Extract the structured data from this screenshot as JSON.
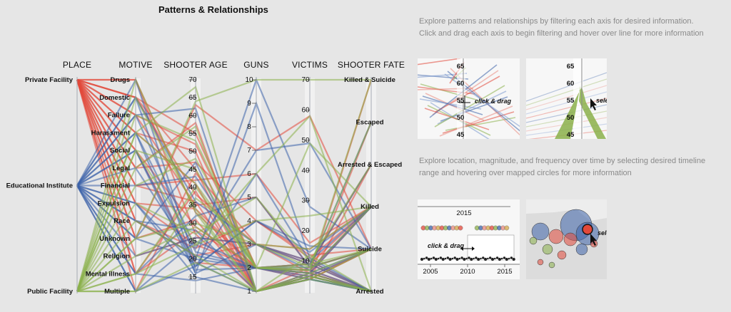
{
  "title": "Patterns & Relationships",
  "instructions": {
    "parallel_line1": "Explore patterns and relationships by filtering each axis for desired information.",
    "parallel_line2": "Click and drag each axis to begin filtering and hover over line for more information",
    "map_line1": "Explore location, magnitude, and frequency over time by selecting desired timeline",
    "map_line2": "range and hovering over mapped circles for more information"
  },
  "demo_panels": {
    "drag_ticks": [
      "65",
      "60",
      "55",
      "50",
      "45"
    ],
    "drag_hint": "click & drag",
    "select_ticks": [
      "65",
      "60",
      "55",
      "50",
      "45"
    ],
    "select_hint": "select",
    "timeline_year_top": "2015",
    "timeline_hint": "click & drag",
    "timeline_years": [
      "2005",
      "2010",
      "2015"
    ],
    "map_hint": "select"
  },
  "chart_data": {
    "type": "parallel-coordinates",
    "axes": [
      {
        "name": "PLACE",
        "kind": "categorical",
        "categories": [
          "Private Facility",
          "Educational Institute",
          "Public Facility"
        ]
      },
      {
        "name": "MOTIVE",
        "kind": "categorical",
        "categories": [
          "Drugs",
          "Domestic",
          "Failure",
          "Harassment",
          "Social",
          "Legal",
          "Financial",
          "Expulsion",
          "Race",
          "Unknown",
          "Religion",
          "Mental illness",
          "Multiple"
        ]
      },
      {
        "name": "SHOOTER AGE",
        "kind": "numeric",
        "ticks": [
          "70",
          "65",
          "60",
          "55",
          "50",
          "45",
          "40",
          "35",
          "30",
          "25",
          "20",
          "15"
        ],
        "range": [
          11,
          70
        ]
      },
      {
        "name": "GUNS",
        "kind": "numeric",
        "ticks": [
          "10",
          "9",
          "8",
          "7",
          "6",
          "5",
          "4",
          "3",
          "2",
          "1"
        ],
        "range": [
          1,
          10
        ]
      },
      {
        "name": "VICTIMS",
        "kind": "numeric",
        "ticks": [
          "70",
          "60",
          "50",
          "40",
          "30",
          "20",
          "10"
        ],
        "range": [
          0,
          70
        ]
      },
      {
        "name": "SHOOTER FATE",
        "kind": "categorical",
        "categories": [
          "Killed & Suicide",
          "Escaped",
          "Arrested & Escaped",
          "Killed",
          "Suicide",
          "Arrested"
        ]
      }
    ],
    "color_by": "PLACE",
    "colors": {
      "Private Facility": "#e2483a",
      "Educational Institute": "#3d63aa",
      "Public Facility": "#8bb04a"
    },
    "records": [
      {
        "place": "Private Facility",
        "motive": "Drugs",
        "age": 33,
        "guns": 2,
        "victims": 5,
        "fate": "Arrested"
      },
      {
        "place": "Private Facility",
        "motive": "Domestic",
        "age": 45,
        "guns": 1,
        "victims": 8,
        "fate": "Suicide"
      },
      {
        "place": "Private Facility",
        "motive": "Domestic",
        "age": 38,
        "guns": 3,
        "victims": 6,
        "fate": "Killed"
      },
      {
        "place": "Private Facility",
        "motive": "Failure",
        "age": 52,
        "guns": 2,
        "victims": 4,
        "fate": "Suicide"
      },
      {
        "place": "Private Facility",
        "motive": "Harassment",
        "age": 41,
        "guns": 1,
        "victims": 6,
        "fate": "Arrested"
      },
      {
        "place": "Private Facility",
        "motive": "Social",
        "age": 29,
        "guns": 2,
        "victims": 9,
        "fate": "Arrested & Escaped"
      },
      {
        "place": "Private Facility",
        "motive": "Legal",
        "age": 47,
        "guns": 4,
        "victims": 12,
        "fate": "Suicide"
      },
      {
        "place": "Private Facility",
        "motive": "Financial",
        "age": 36,
        "guns": 1,
        "victims": 5,
        "fate": "Arrested"
      },
      {
        "place": "Private Facility",
        "motive": "Expulsion",
        "age": 24,
        "guns": 2,
        "victims": 7,
        "fate": "Killed"
      },
      {
        "place": "Private Facility",
        "motive": "Race",
        "age": 21,
        "guns": 3,
        "victims": 10,
        "fate": "Arrested"
      },
      {
        "place": "Private Facility",
        "motive": "Unknown",
        "age": 63,
        "guns": 7,
        "victims": 58,
        "fate": "Suicide"
      },
      {
        "place": "Private Facility",
        "motive": "Unknown",
        "age": 31,
        "guns": 1,
        "victims": 5,
        "fate": "Escaped"
      },
      {
        "place": "Private Facility",
        "motive": "Religion",
        "age": 26,
        "guns": 3,
        "victims": 9,
        "fate": "Killed"
      },
      {
        "place": "Private Facility",
        "motive": "Mental illness",
        "age": 28,
        "guns": 2,
        "victims": 7,
        "fate": "Arrested"
      },
      {
        "place": "Private Facility",
        "motive": "Mental illness",
        "age": 39,
        "guns": 1,
        "victims": 4,
        "fate": "Suicide"
      },
      {
        "place": "Private Facility",
        "motive": "Multiple",
        "age": 44,
        "guns": 3,
        "victims": 14,
        "fate": "Killed"
      },
      {
        "place": "Private Facility",
        "motive": "Domestic",
        "age": 55,
        "guns": 2,
        "victims": 6,
        "fate": "Killed & Suicide"
      },
      {
        "place": "Private Facility",
        "motive": "Failure",
        "age": 35,
        "guns": 5,
        "victims": 8,
        "fate": "Suicide"
      },
      {
        "place": "Private Facility",
        "motive": "Harassment",
        "age": 50,
        "guns": 1,
        "victims": 5,
        "fate": "Arrested"
      },
      {
        "place": "Private Facility",
        "motive": "Financial",
        "age": 42,
        "guns": 6,
        "victims": 16,
        "fate": "Killed"
      },
      {
        "place": "Private Facility",
        "motive": "Social",
        "age": 19,
        "guns": 2,
        "victims": 6,
        "fate": "Arrested"
      },
      {
        "place": "Private Facility",
        "motive": "Drugs",
        "age": 27,
        "guns": 1,
        "victims": 4,
        "fate": "Arrested & Escaped"
      },
      {
        "place": "Private Facility",
        "motive": "Legal",
        "age": 58,
        "guns": 1,
        "victims": 5,
        "fate": "Suicide"
      },
      {
        "place": "Private Facility",
        "motive": "Expulsion",
        "age": 34,
        "guns": 2,
        "victims": 9,
        "fate": "Arrested"
      },
      {
        "place": "Private Facility",
        "motive": "Race",
        "age": 23,
        "guns": 4,
        "victims": 11,
        "fate": "Killed"
      },
      {
        "place": "Educational Institute",
        "motive": "Domestic",
        "age": 17,
        "guns": 2,
        "victims": 5,
        "fate": "Arrested"
      },
      {
        "place": "Educational Institute",
        "motive": "Failure",
        "age": 23,
        "guns": 7,
        "victims": 49,
        "fate": "Suicide"
      },
      {
        "place": "Educational Institute",
        "motive": "Harassment",
        "age": 16,
        "guns": 3,
        "victims": 9,
        "fate": "Arrested"
      },
      {
        "place": "Educational Institute",
        "motive": "Social",
        "age": 18,
        "guns": 4,
        "victims": 13,
        "fate": "Killed"
      },
      {
        "place": "Educational Institute",
        "motive": "Legal",
        "age": 20,
        "guns": 2,
        "victims": 6,
        "fate": "Suicide"
      },
      {
        "place": "Educational Institute",
        "motive": "Expulsion",
        "age": 15,
        "guns": 1,
        "victims": 5,
        "fate": "Arrested"
      },
      {
        "place": "Educational Institute",
        "motive": "Race",
        "age": 21,
        "guns": 2,
        "victims": 9,
        "fate": "Arrested & Escaped"
      },
      {
        "place": "Educational Institute",
        "motive": "Unknown",
        "age": 20,
        "guns": 10,
        "victims": 28,
        "fate": "Suicide"
      },
      {
        "place": "Educational Institute",
        "motive": "Unknown",
        "age": 47,
        "guns": 1,
        "victims": 6,
        "fate": "Arrested"
      },
      {
        "place": "Educational Institute",
        "motive": "Religion",
        "age": 26,
        "guns": 3,
        "victims": 10,
        "fate": "Killed"
      },
      {
        "place": "Educational Institute",
        "motive": "Mental illness",
        "age": 14,
        "guns": 2,
        "victims": 4,
        "fate": "Arrested"
      },
      {
        "place": "Educational Institute",
        "motive": "Mental illness",
        "age": 32,
        "guns": 5,
        "victims": 8,
        "fate": "Suicide"
      },
      {
        "place": "Educational Institute",
        "motive": "Multiple",
        "age": 18,
        "guns": 4,
        "victims": 15,
        "fate": "Suicide"
      },
      {
        "place": "Educational Institute",
        "motive": "Multiple",
        "age": 25,
        "guns": 2,
        "victims": 7,
        "fate": "Arrested"
      },
      {
        "place": "Educational Institute",
        "motive": "Drugs",
        "age": 19,
        "guns": 1,
        "victims": 4,
        "fate": "Arrested"
      },
      {
        "place": "Educational Institute",
        "motive": "Financial",
        "age": 43,
        "guns": 2,
        "victims": 6,
        "fate": "Killed"
      },
      {
        "place": "Educational Institute",
        "motive": "Social",
        "age": 16,
        "guns": 9,
        "victims": 11,
        "fate": "Arrested"
      },
      {
        "place": "Educational Institute",
        "motive": "Failure",
        "age": 62,
        "guns": 1,
        "victims": 5,
        "fate": "Suicide"
      },
      {
        "place": "Educational Institute",
        "motive": "Harassment",
        "age": 22,
        "guns": 2,
        "victims": 8,
        "fate": "Escaped"
      },
      {
        "place": "Educational Institute",
        "motive": "Domestic",
        "age": 36,
        "guns": 3,
        "victims": 7,
        "fate": "Killed"
      },
      {
        "place": "Educational Institute",
        "motive": "Expulsion",
        "age": 18,
        "guns": 6,
        "victims": 10,
        "fate": "Arrested"
      },
      {
        "place": "Educational Institute",
        "motive": "Race",
        "age": 28,
        "guns": 1,
        "victims": 4,
        "fate": "Arrested"
      },
      {
        "place": "Public Facility",
        "motive": "Domestic",
        "age": 34,
        "guns": 1,
        "victims": 6,
        "fate": "Arrested"
      },
      {
        "place": "Public Facility",
        "motive": "Harassment",
        "age": 41,
        "guns": 2,
        "victims": 9,
        "fate": "Suicide"
      },
      {
        "place": "Public Facility",
        "motive": "Social",
        "age": 24,
        "guns": 4,
        "victims": 25,
        "fate": "Killed"
      },
      {
        "place": "Public Facility",
        "motive": "Legal",
        "age": 57,
        "guns": 1,
        "victims": 5,
        "fate": "Arrested"
      },
      {
        "place": "Public Facility",
        "motive": "Financial",
        "age": 48,
        "guns": 2,
        "victims": 7,
        "fate": "Killed & Suicide"
      },
      {
        "place": "Public Facility",
        "motive": "Race",
        "age": 21,
        "guns": 1,
        "victims": 12,
        "fate": "Arrested"
      },
      {
        "place": "Public Facility",
        "motive": "Unknown",
        "age": 64,
        "guns": 10,
        "victims": 70,
        "fate": "Killed & Suicide"
      },
      {
        "place": "Public Facility",
        "motive": "Unknown",
        "age": 30,
        "guns": 3,
        "victims": 8,
        "fate": "Escaped"
      },
      {
        "place": "Public Facility",
        "motive": "Religion",
        "age": 29,
        "guns": 2,
        "victims": 49,
        "fate": "Killed"
      },
      {
        "place": "Public Facility",
        "motive": "Mental illness",
        "age": 24,
        "guns": 6,
        "victims": 58,
        "fate": "Arrested"
      },
      {
        "place": "Public Facility",
        "motive": "Mental illness",
        "age": 40,
        "guns": 2,
        "victims": 6,
        "fate": "Suicide"
      },
      {
        "place": "Public Facility",
        "motive": "Multiple",
        "age": 37,
        "guns": 3,
        "victims": 14,
        "fate": "Killed"
      },
      {
        "place": "Public Facility",
        "motive": "Multiple",
        "age": 19,
        "guns": 1,
        "victims": 4,
        "fate": "Arrested"
      },
      {
        "place": "Public Facility",
        "motive": "Failure",
        "age": 53,
        "guns": 2,
        "victims": 8,
        "fate": "Suicide"
      },
      {
        "place": "Public Facility",
        "motive": "Expulsion",
        "age": 27,
        "guns": 5,
        "victims": 10,
        "fate": "Arrested & Escaped"
      },
      {
        "place": "Public Facility",
        "motive": "Drugs",
        "age": 33,
        "guns": 1,
        "victims": 5,
        "fate": "Arrested"
      },
      {
        "place": "Public Facility",
        "motive": "Social",
        "age": 45,
        "guns": 2,
        "victims": 7,
        "fate": "Killed"
      },
      {
        "place": "Public Facility",
        "motive": "Harassment",
        "age": 68,
        "guns": 1,
        "victims": 4,
        "fate": "Suicide"
      }
    ]
  }
}
